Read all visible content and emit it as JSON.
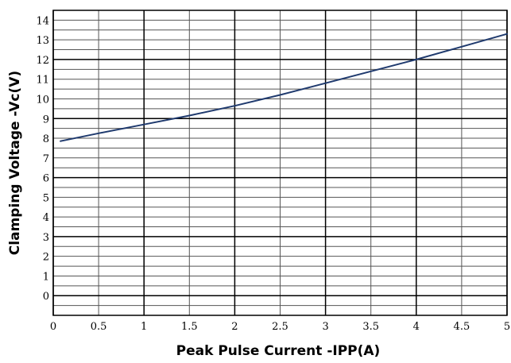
{
  "chart_data": {
    "type": "line",
    "title": "",
    "xlabel": "Peak Pulse Current -IPP(A)",
    "ylabel": "Clamping Voltage -Vc(V)",
    "xlim": [
      0,
      5
    ],
    "ylim": [
      -1,
      14.5
    ],
    "x_ticks": [
      "0",
      "0.5",
      "1",
      "1.5",
      "2",
      "2.5",
      "3",
      "3.5",
      "4",
      "4.5",
      "5"
    ],
    "y_ticks": [
      "0",
      "1",
      "2",
      "3",
      "4",
      "5",
      "6",
      "7",
      "8",
      "9",
      "10",
      "11",
      "12",
      "13",
      "14"
    ],
    "grid": true,
    "legend": "none",
    "series": [
      {
        "color": "#1f3a6e",
        "x": [
          0.08,
          0.5,
          1.0,
          1.5,
          2.0,
          2.5,
          3.0,
          3.5,
          4.0,
          4.5,
          5.0
        ],
        "y": [
          7.85,
          8.25,
          8.7,
          9.15,
          9.65,
          10.2,
          10.8,
          11.4,
          12.0,
          12.65,
          13.3
        ]
      }
    ]
  }
}
